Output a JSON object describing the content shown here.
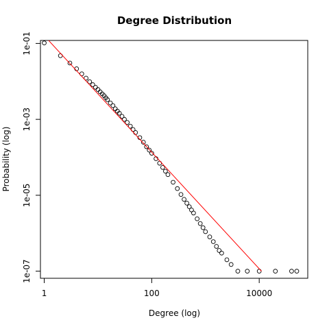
{
  "chart_data": {
    "type": "scatter",
    "title": "Degree Distribution",
    "xlabel": "Degree (log)",
    "ylabel": "Probability (log)",
    "x_scale": "log",
    "y_scale": "log",
    "xlim": [
      0.85,
      80000
    ],
    "ylim": [
      6.5e-08,
      0.12
    ],
    "x_ticks": [
      {
        "value": 1,
        "label": "1"
      },
      {
        "value": 100,
        "label": "100"
      },
      {
        "value": 10000,
        "label": "10000"
      }
    ],
    "y_ticks": [
      {
        "value": 0.1,
        "label": "1e-01"
      },
      {
        "value": 0.001,
        "label": "1e-03"
      },
      {
        "value": 1e-05,
        "label": "1e-05"
      },
      {
        "value": 1e-07,
        "label": "1e-07"
      }
    ],
    "grid": false,
    "legend": "none",
    "marker": "open-circle",
    "point_color": "#000000",
    "fit_line_color": "#ff0000",
    "series": [
      {
        "points": [
          [
            1,
            0.103
          ],
          [
            2,
            0.0475
          ],
          [
            3,
            0.0305
          ],
          [
            4,
            0.0215
          ],
          [
            5,
            0.0158
          ],
          [
            6,
            0.0122
          ],
          [
            7,
            0.0098
          ],
          [
            8,
            0.0082
          ],
          [
            9,
            0.007
          ],
          [
            10,
            0.0061
          ],
          [
            11,
            0.0053
          ],
          [
            12,
            0.0047
          ],
          [
            13,
            0.0042
          ],
          [
            14,
            0.0037
          ],
          [
            15,
            0.0033
          ],
          [
            17,
            0.0027
          ],
          [
            19,
            0.0023
          ],
          [
            21,
            0.0019
          ],
          [
            23,
            0.00165
          ],
          [
            25,
            0.00145
          ],
          [
            28,
            0.0012
          ],
          [
            31,
            0.001
          ],
          [
            35,
            0.00083
          ],
          [
            40,
            0.00066
          ],
          [
            45,
            0.00054
          ],
          [
            50,
            0.00045
          ],
          [
            60,
            0.00033
          ],
          [
            70,
            0.00025
          ],
          [
            80,
            0.00019
          ],
          [
            90,
            0.000155
          ],
          [
            100,
            0.000128
          ],
          [
            120,
            9.2e-05
          ],
          [
            140,
            7e-05
          ],
          [
            160,
            5.4e-05
          ],
          [
            180,
            4.3e-05
          ],
          [
            200,
            3.5e-05
          ],
          [
            250,
            2.2e-05
          ],
          [
            300,
            1.5e-05
          ],
          [
            350,
            1.05e-05
          ],
          [
            400,
            7.8e-06
          ],
          [
            450,
            6.2e-06
          ],
          [
            500,
            5e-06
          ],
          [
            550,
            4.1e-06
          ],
          [
            600,
            3.4e-06
          ],
          [
            700,
            2.4e-06
          ],
          [
            800,
            1.8e-06
          ],
          [
            900,
            1.4e-06
          ],
          [
            1000,
            1.1e-06
          ],
          [
            1200,
            8e-07
          ],
          [
            1400,
            6e-07
          ],
          [
            1600,
            4.5e-07
          ],
          [
            1800,
            3.5e-07
          ],
          [
            2000,
            3e-07
          ],
          [
            2500,
            2e-07
          ],
          [
            3000,
            1.5e-07
          ],
          [
            4000,
            1e-07
          ],
          [
            6000,
            1e-07
          ],
          [
            10000,
            1e-07
          ],
          [
            20000,
            1e-07
          ],
          [
            40000,
            1e-07
          ],
          [
            50000,
            1e-07
          ]
        ]
      }
    ],
    "fit_line": {
      "x": [
        1,
        11000
      ],
      "y": [
        0.16,
        1e-07
      ]
    }
  }
}
